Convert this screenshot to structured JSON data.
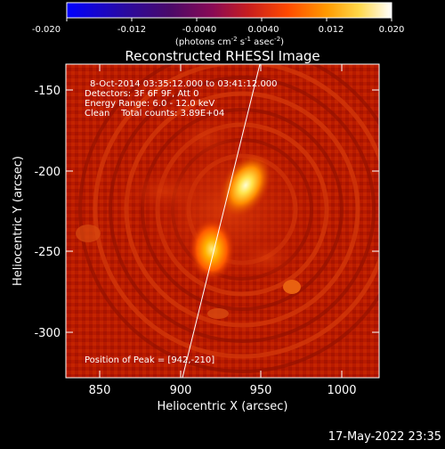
{
  "colorbar": {
    "ticks": [
      "-0.020",
      "-0.012",
      "-0.0040",
      "0.0040",
      "0.012",
      "0.020"
    ],
    "unit_base": "(photons cm",
    "unit_exp1": "-2",
    "unit_mid": " s",
    "unit_exp2": "-1",
    "unit_end": " asec",
    "unit_exp3": "-2",
    "unit_close": ")"
  },
  "plot": {
    "title": "Reconstructed RHESSI Image",
    "xlabel": "Heliocentric X (arcsec)",
    "ylabel": "Heliocentric Y (arcsec)",
    "xticks": [
      "850",
      "900",
      "950",
      "1000"
    ],
    "yticks": [
      "-150",
      "-200",
      "-250",
      "-300"
    ],
    "info_line1": "8-Oct-2014 03:35:12.000 to 03:41:12.000",
    "info_line2": "Detectors: 3F 6F 9F, Att 0",
    "info_line3": "Energy Range: 6.0 - 12.0 keV",
    "info_line4": "Clean    Total counts: 3.89E+04",
    "peak_label": "Position of Peak = [942,-210]"
  },
  "footer": {
    "datestamp": "17-May-2022 23:35"
  },
  "chart_data": {
    "type": "heatmap",
    "title": "Reconstructed RHESSI Image",
    "xlabel": "Heliocentric X (arcsec)",
    "ylabel": "Heliocentric Y (arcsec)",
    "xlim": [
      830,
      1022
    ],
    "ylim": [
      -328,
      -138
    ],
    "colorbar_range": [
      -0.02,
      0.02
    ],
    "sources": [
      {
        "x": 942,
        "y": -210,
        "peak": 0.02
      },
      {
        "x": 920,
        "y": -248,
        "peak": 0.016
      }
    ],
    "peak_position": [
      942,
      -210
    ]
  }
}
